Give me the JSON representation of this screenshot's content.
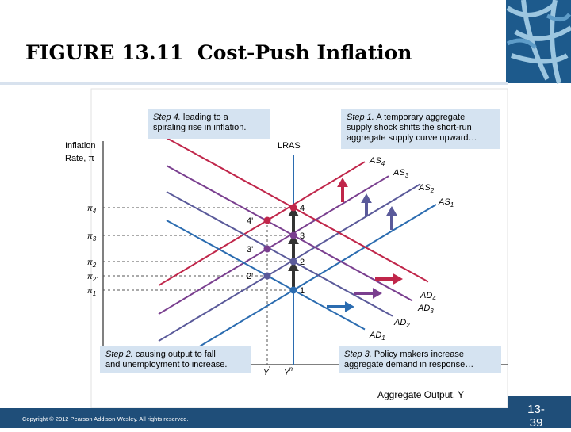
{
  "header": {
    "title": "FIGURE 13.11  Cost-Push Inflation"
  },
  "figure": {
    "y_axis_label": [
      "Inflation",
      "Rate, π"
    ],
    "x_axis_label": "Aggregate Output, Y",
    "lras_label": "LRAS",
    "y_ticks": [
      {
        "sym": "π",
        "sub": "4"
      },
      {
        "sym": "π",
        "sub": "3"
      },
      {
        "sym": "π",
        "sub": "2"
      },
      {
        "sym": "π",
        "sub": "2'"
      },
      {
        "sym": "π",
        "sub": "1"
      }
    ],
    "x_ticks": [
      {
        "sym": "Y",
        "sup": "'"
      },
      {
        "sym": "Y",
        "sup": "n"
      }
    ],
    "curves": [
      {
        "sym": "AS",
        "sub": "1"
      },
      {
        "sym": "AS",
        "sub": "2"
      },
      {
        "sym": "AS",
        "sub": "3"
      },
      {
        "sym": "AS",
        "sub": "4"
      },
      {
        "sym": "AD",
        "sub": "1"
      },
      {
        "sym": "AD",
        "sub": "2"
      },
      {
        "sym": "AD",
        "sub": "3"
      },
      {
        "sym": "AD",
        "sub": "4"
      }
    ],
    "points": [
      "1",
      "2",
      "3",
      "4",
      "2'",
      "3'",
      "4'"
    ],
    "steps": [
      {
        "lead": "Step 1.",
        "lines": [
          "A temporary aggregate",
          "supply shock shifts the short-run",
          "aggregate supply curve upward…"
        ]
      },
      {
        "lead": "Step 2.",
        "lines": [
          "causing output to fall",
          "and unemployment to increase."
        ]
      },
      {
        "lead": "Step 3.",
        "lines": [
          "Policy makers increase",
          "aggregate demand in response…"
        ]
      },
      {
        "lead": "Step 4.",
        "lines": [
          "leading to a",
          "spiraling rise in inflation."
        ]
      }
    ]
  },
  "footer": {
    "copyright": "Copyright © 2012 Pearson Addison-Wesley. All rights reserved.",
    "slide_number": [
      "13-",
      "39"
    ]
  }
}
